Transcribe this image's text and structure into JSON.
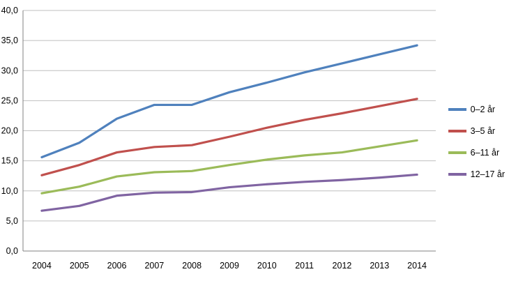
{
  "chart_data": {
    "type": "line",
    "x": [
      2004,
      2005,
      2006,
      2007,
      2008,
      2009,
      2010,
      2011,
      2012,
      2013,
      2014
    ],
    "x_labels": [
      "2004",
      "2005",
      "2006",
      "2007",
      "2008",
      "2009",
      "2010",
      "2011",
      "2012",
      "2013",
      "2014"
    ],
    "series": [
      {
        "name": "0–2 år",
        "color": "#4F81BD",
        "values": [
          15.6,
          18.0,
          22.0,
          24.3,
          24.3,
          26.4,
          28.0,
          29.7,
          31.2,
          32.7,
          34.2
        ]
      },
      {
        "name": "3–5 år",
        "color": "#C0504D",
        "values": [
          12.6,
          14.3,
          16.4,
          17.3,
          17.6,
          19.0,
          20.5,
          21.8,
          22.9,
          24.1,
          25.3
        ]
      },
      {
        "name": "6–11 år",
        "color": "#9BBB59",
        "values": [
          9.6,
          10.7,
          12.4,
          13.1,
          13.3,
          14.3,
          15.2,
          15.9,
          16.4,
          17.4,
          18.4
        ]
      },
      {
        "name": "12–17 år",
        "color": "#8064A2",
        "values": [
          6.7,
          7.5,
          9.2,
          9.7,
          9.8,
          10.6,
          11.1,
          11.5,
          11.8,
          12.2,
          12.7
        ]
      }
    ],
    "title": "",
    "xlabel": "",
    "ylabel": "",
    "ylim": [
      0,
      40
    ],
    "ytick_step": 5,
    "ytick_labels": [
      "0,0",
      "5,0",
      "10,0",
      "15,0",
      "20,0",
      "25,0",
      "30,0",
      "35,0",
      "40,0"
    ],
    "grid": true,
    "legend_position": "right",
    "colors": {
      "gridline": "#bfbfbf",
      "axis": "#808080",
      "text": "#000000",
      "background": "#ffffff"
    }
  }
}
